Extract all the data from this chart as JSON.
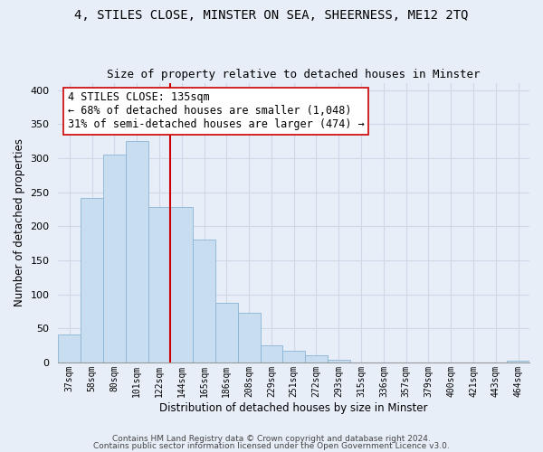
{
  "title": "4, STILES CLOSE, MINSTER ON SEA, SHEERNESS, ME12 2TQ",
  "subtitle": "Size of property relative to detached houses in Minster",
  "xlabel": "Distribution of detached houses by size in Minster",
  "ylabel": "Number of detached properties",
  "categories": [
    "37sqm",
    "58sqm",
    "80sqm",
    "101sqm",
    "122sqm",
    "144sqm",
    "165sqm",
    "186sqm",
    "208sqm",
    "229sqm",
    "251sqm",
    "272sqm",
    "293sqm",
    "315sqm",
    "336sqm",
    "357sqm",
    "379sqm",
    "400sqm",
    "421sqm",
    "443sqm",
    "464sqm"
  ],
  "values": [
    41,
    242,
    305,
    325,
    228,
    228,
    181,
    87,
    73,
    25,
    17,
    10,
    4,
    0,
    0,
    0,
    0,
    0,
    0,
    0,
    2
  ],
  "bar_color": "#c8ddf0",
  "bar_edge_color": "#8ab4d4",
  "vline_color": "#cc0000",
  "annotation_title": "4 STILES CLOSE: 135sqm",
  "annotation_line1": "← 68% of detached houses are smaller (1,048)",
  "annotation_line2": "31% of semi-detached houses are larger (474) →",
  "annotation_box_color": "#ffffff",
  "annotation_box_edge": "#cc0000",
  "ylim": [
    0,
    410
  ],
  "footer1": "Contains HM Land Registry data © Crown copyright and database right 2024.",
  "footer2": "Contains public sector information licensed under the Open Government Licence v3.0.",
  "background_color": "#e8eef8",
  "grid_color": "#d0d8e8",
  "title_fontsize": 10,
  "subtitle_fontsize": 9,
  "annotation_fontsize": 8.5
}
